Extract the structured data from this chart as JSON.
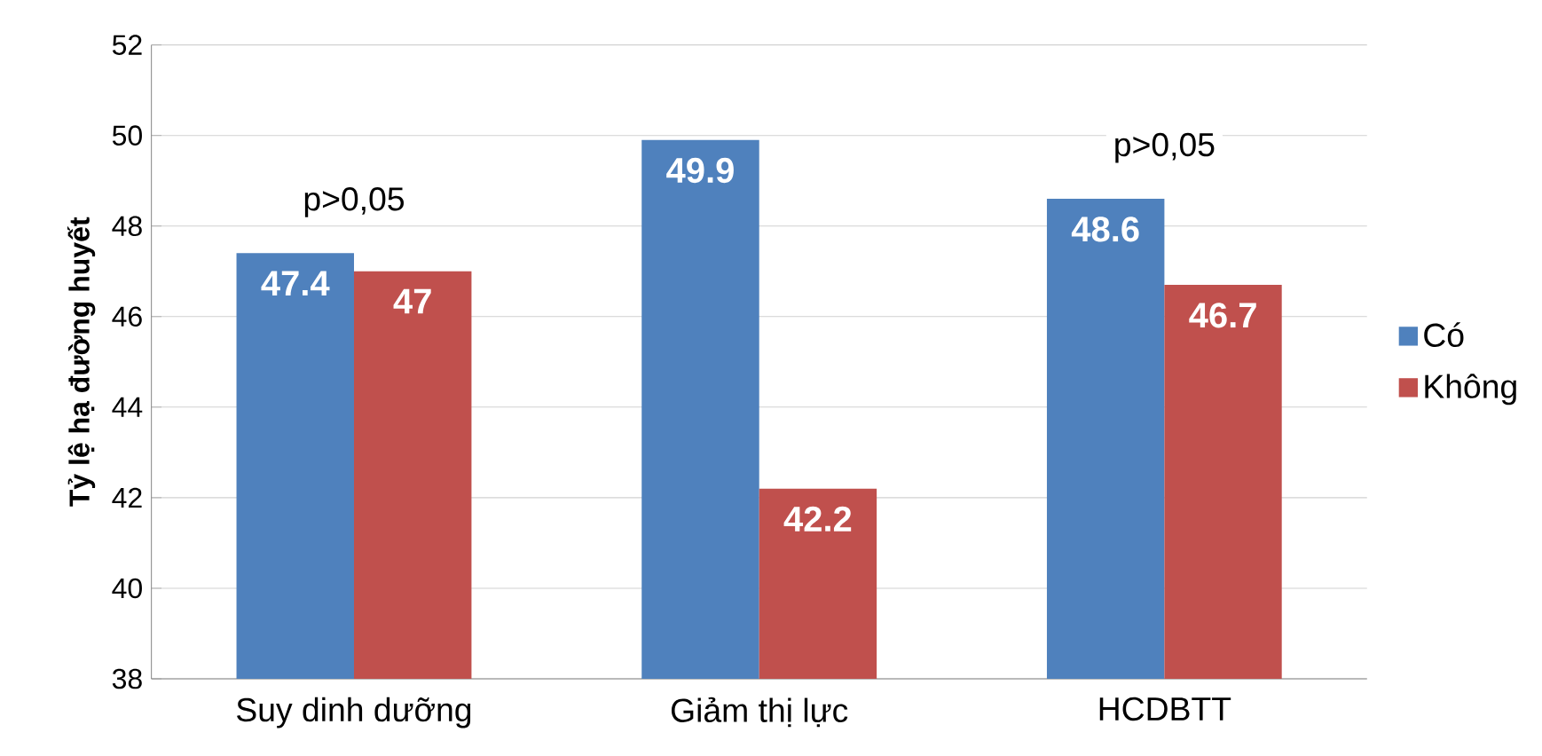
{
  "chart_data": {
    "type": "bar",
    "ylabel": "Tỷ lệ hạ đường huyết",
    "categories": [
      "Suy dinh dưỡng",
      "Giảm thị lực",
      "HCDBTT"
    ],
    "series": [
      {
        "name": "Có",
        "color": "#4f81bd",
        "values": [
          47.4,
          49.9,
          48.6
        ]
      },
      {
        "name": "Không",
        "color": "#c0504d",
        "values": [
          47,
          42.2,
          46.7
        ]
      }
    ],
    "ylim": [
      38,
      52
    ],
    "yticks": [
      38,
      40,
      42,
      44,
      46,
      48,
      50,
      52
    ],
    "grid": "y",
    "legend": "right",
    "data_labels": true,
    "annotations": [
      "p>0,05",
      "p>0,05"
    ]
  }
}
